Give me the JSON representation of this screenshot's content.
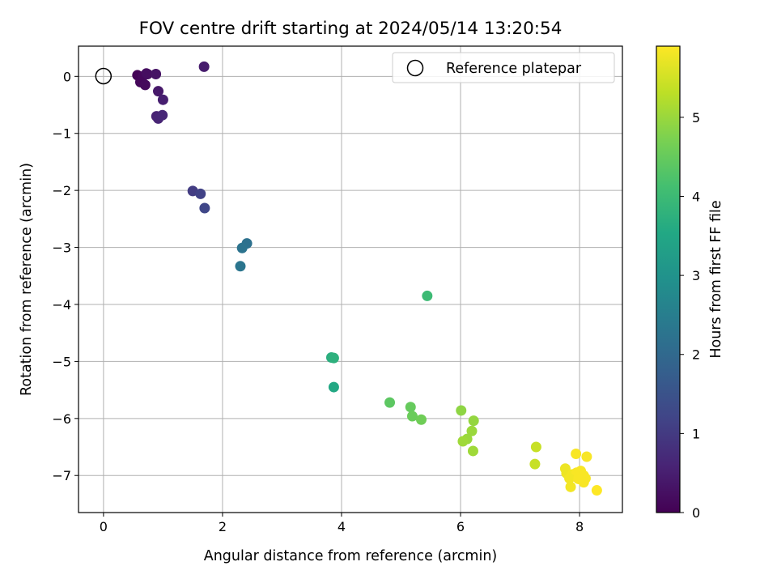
{
  "chart_data": {
    "type": "scatter",
    "title": "FOV centre drift starting at 2024/05/14 13:20:54",
    "xlabel": "Angular distance from reference (arcmin)",
    "ylabel": "Rotation from reference (arcmin)",
    "colorbar_label": "Hours from first FF file",
    "xlim": [
      -0.42,
      8.72
    ],
    "ylim": [
      -7.65,
      0.53
    ],
    "x_ticks": [
      "0",
      "2",
      "4",
      "6",
      "8"
    ],
    "y_ticks": [
      "0",
      "−1",
      "−2",
      "−3",
      "−4",
      "−5",
      "−6",
      "−7"
    ],
    "colorbar_range": [
      0,
      5.9
    ],
    "colorbar_ticks": [
      "0",
      "1",
      "2",
      "3",
      "4",
      "5"
    ],
    "colormap": "viridis",
    "grid": true,
    "legend_position": "top-right",
    "reference": {
      "name": "Reference platepar",
      "x": 0,
      "y": 0
    },
    "points": [
      {
        "x": 0.57,
        "y": 0.02,
        "hours": 0.05
      },
      {
        "x": 0.62,
        "y": -0.1,
        "hours": 0.1
      },
      {
        "x": 0.66,
        "y": 0.0,
        "hours": 0.12
      },
      {
        "x": 0.7,
        "y": -0.15,
        "hours": 0.15
      },
      {
        "x": 0.72,
        "y": 0.05,
        "hours": 0.2
      },
      {
        "x": 0.74,
        "y": 0.04,
        "hours": 0.22
      },
      {
        "x": 0.88,
        "y": 0.04,
        "hours": 0.3
      },
      {
        "x": 0.92,
        "y": -0.26,
        "hours": 0.4
      },
      {
        "x": 1.0,
        "y": -0.41,
        "hours": 0.5
      },
      {
        "x": 0.89,
        "y": -0.7,
        "hours": 0.55
      },
      {
        "x": 0.92,
        "y": -0.74,
        "hours": 0.6
      },
      {
        "x": 0.99,
        "y": -0.68,
        "hours": 0.65
      },
      {
        "x": 1.69,
        "y": 0.17,
        "hours": 0.45
      },
      {
        "x": 1.5,
        "y": -2.01,
        "hours": 1.05
      },
      {
        "x": 1.63,
        "y": -2.06,
        "hours": 1.15
      },
      {
        "x": 1.7,
        "y": -2.31,
        "hours": 1.25
      },
      {
        "x": 2.41,
        "y": -2.93,
        "hours": 2.2
      },
      {
        "x": 2.33,
        "y": -3.01,
        "hours": 2.25
      },
      {
        "x": 2.3,
        "y": -3.33,
        "hours": 2.3
      },
      {
        "x": 3.83,
        "y": -4.93,
        "hours": 3.7
      },
      {
        "x": 3.87,
        "y": -4.94,
        "hours": 3.75
      },
      {
        "x": 3.87,
        "y": -5.45,
        "hours": 3.55
      },
      {
        "x": 5.44,
        "y": -3.85,
        "hours": 4.0
      },
      {
        "x": 4.81,
        "y": -5.72,
        "hours": 4.4
      },
      {
        "x": 5.16,
        "y": -5.8,
        "hours": 4.5
      },
      {
        "x": 5.19,
        "y": -5.96,
        "hours": 4.55
      },
      {
        "x": 5.34,
        "y": -6.02,
        "hours": 4.6
      },
      {
        "x": 6.01,
        "y": -5.86,
        "hours": 4.9
      },
      {
        "x": 6.22,
        "y": -6.04,
        "hours": 4.95
      },
      {
        "x": 6.19,
        "y": -6.22,
        "hours": 5.0
      },
      {
        "x": 6.11,
        "y": -6.36,
        "hours": 5.0
      },
      {
        "x": 6.04,
        "y": -6.4,
        "hours": 5.05
      },
      {
        "x": 6.21,
        "y": -6.57,
        "hours": 5.05
      },
      {
        "x": 7.27,
        "y": -6.5,
        "hours": 5.4
      },
      {
        "x": 7.25,
        "y": -6.8,
        "hours": 5.4
      },
      {
        "x": 7.94,
        "y": -6.62,
        "hours": 5.85
      },
      {
        "x": 8.12,
        "y": -6.67,
        "hours": 5.85
      },
      {
        "x": 7.76,
        "y": -6.88,
        "hours": 5.75
      },
      {
        "x": 7.78,
        "y": -6.96,
        "hours": 5.75
      },
      {
        "x": 7.88,
        "y": -6.98,
        "hours": 5.8
      },
      {
        "x": 7.95,
        "y": -6.95,
        "hours": 5.85
      },
      {
        "x": 8.02,
        "y": -6.92,
        "hours": 5.85
      },
      {
        "x": 8.07,
        "y": -7.0,
        "hours": 5.85
      },
      {
        "x": 8.1,
        "y": -7.05,
        "hours": 5.85
      },
      {
        "x": 7.83,
        "y": -7.05,
        "hours": 5.8
      },
      {
        "x": 7.98,
        "y": -7.06,
        "hours": 5.85
      },
      {
        "x": 8.07,
        "y": -7.12,
        "hours": 5.85
      },
      {
        "x": 7.85,
        "y": -7.2,
        "hours": 5.8
      },
      {
        "x": 8.29,
        "y": -7.26,
        "hours": 5.9
      }
    ]
  }
}
